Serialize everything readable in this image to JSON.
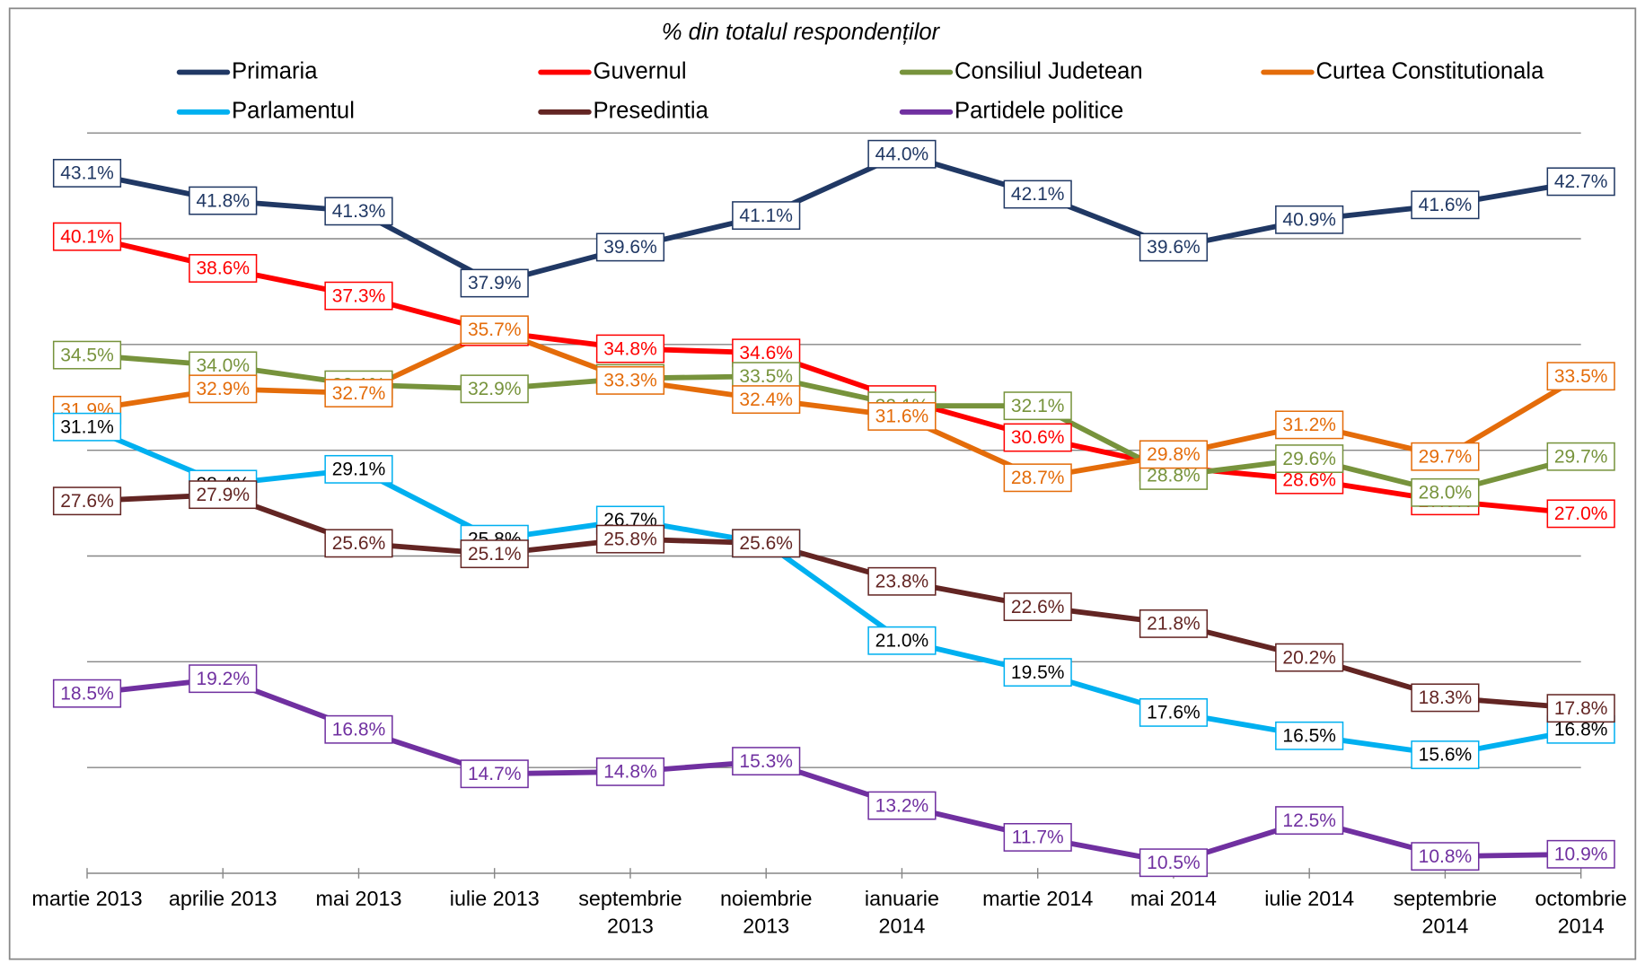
{
  "chart_data": {
    "type": "line",
    "title": "% din totalul respondenților",
    "categories": [
      "martie 2013",
      "aprilie 2013",
      "mai 2013",
      "iulie 2013",
      "septembrie\n2013",
      "noiembrie\n2013",
      "ianuarie\n2014",
      "martie 2014",
      "mai 2014",
      "iulie 2014",
      "septembrie\n2014",
      "octombrie\n2014"
    ],
    "ylim": [
      10,
      45
    ],
    "yticks": [
      15,
      20,
      25,
      30,
      35,
      40,
      45
    ],
    "grid": true,
    "series": [
      {
        "name": "Primaria",
        "color": "#203864",
        "values": [
          43.1,
          41.8,
          41.3,
          37.9,
          39.6,
          41.1,
          44.0,
          42.1,
          39.6,
          40.9,
          41.6,
          42.7
        ],
        "value_labels": [
          "43.1%",
          "41.8%",
          "41.3%",
          "37.9%",
          "39.6%",
          "41.1%",
          "44.0%",
          "42.1%",
          "39.6%",
          "40.9%",
          "41.6%",
          "42.7%"
        ]
      },
      {
        "name": "Guvernul",
        "color": "#ff0000",
        "values": [
          40.1,
          38.6,
          37.3,
          35.6,
          34.8,
          34.6,
          32.4,
          30.6,
          29.2,
          28.6,
          27.6,
          27.0
        ],
        "value_labels": [
          "40.1%",
          "38.6%",
          "37.3%",
          "35.6%",
          "34.8%",
          "34.6%",
          "32.4%",
          "30.6%",
          "29.2%",
          "28.6%",
          "27.6%",
          "27.0%"
        ]
      },
      {
        "name": "Consiliul Judetean",
        "color": "#77933c",
        "values": [
          34.5,
          34.0,
          33.1,
          32.9,
          33.4,
          33.5,
          32.1,
          32.1,
          28.8,
          29.6,
          28.0,
          29.7
        ],
        "value_labels": [
          "34.5%",
          "34.0%",
          "33.1%",
          "32.9%",
          "33.4%",
          "33.5%",
          "32.1%",
          "32.1%",
          "28.8%",
          "29.6%",
          "28.0%",
          "29.7%"
        ]
      },
      {
        "name": "Curtea Constitutionala",
        "color": "#e46c0a",
        "values": [
          31.9,
          32.9,
          32.7,
          35.7,
          33.3,
          32.4,
          31.6,
          28.7,
          29.8,
          31.2,
          29.7,
          33.5
        ],
        "value_labels": [
          "31.9%",
          "32.9%",
          "32.7%",
          "35.7%",
          "33.3%",
          "32.4%",
          "31.6%",
          "28.7%",
          "29.8%",
          "31.2%",
          "29.7%",
          "33.5%"
        ]
      },
      {
        "name": "Parlamentul",
        "color": "#00b0f0",
        "values": [
          31.1,
          28.4,
          29.1,
          25.8,
          26.7,
          25.6,
          21.0,
          19.5,
          17.6,
          16.5,
          15.6,
          16.8
        ],
        "value_labels": [
          "31.1%",
          "28.4%",
          "29.1%",
          "25.8%",
          "26.7%",
          "25.6%",
          "21.0%",
          "19.5%",
          "17.6%",
          "16.5%",
          "15.6%",
          "16.8%"
        ]
      },
      {
        "name": "Presedintia",
        "color": "#632523",
        "values": [
          27.6,
          27.9,
          25.6,
          25.1,
          25.8,
          25.6,
          23.8,
          22.6,
          21.8,
          20.2,
          18.3,
          17.8
        ],
        "value_labels": [
          "27.6%",
          "27.9%",
          "25.6%",
          "25.1%",
          "25.8%",
          "25.6%",
          "23.8%",
          "22.6%",
          "21.8%",
          "20.2%",
          "18.3%",
          "17.8%"
        ]
      },
      {
        "name": "Partidele politice",
        "color": "#7030a0",
        "values": [
          18.5,
          19.2,
          16.8,
          14.7,
          14.8,
          15.3,
          13.2,
          11.7,
          10.5,
          12.5,
          10.8,
          10.9
        ],
        "value_labels": [
          "18.5%",
          "19.2%",
          "16.8%",
          "14.7%",
          "14.8%",
          "15.3%",
          "13.2%",
          "11.7%",
          "10.5%",
          "12.5%",
          "10.8%",
          "10.9%"
        ]
      }
    ]
  }
}
